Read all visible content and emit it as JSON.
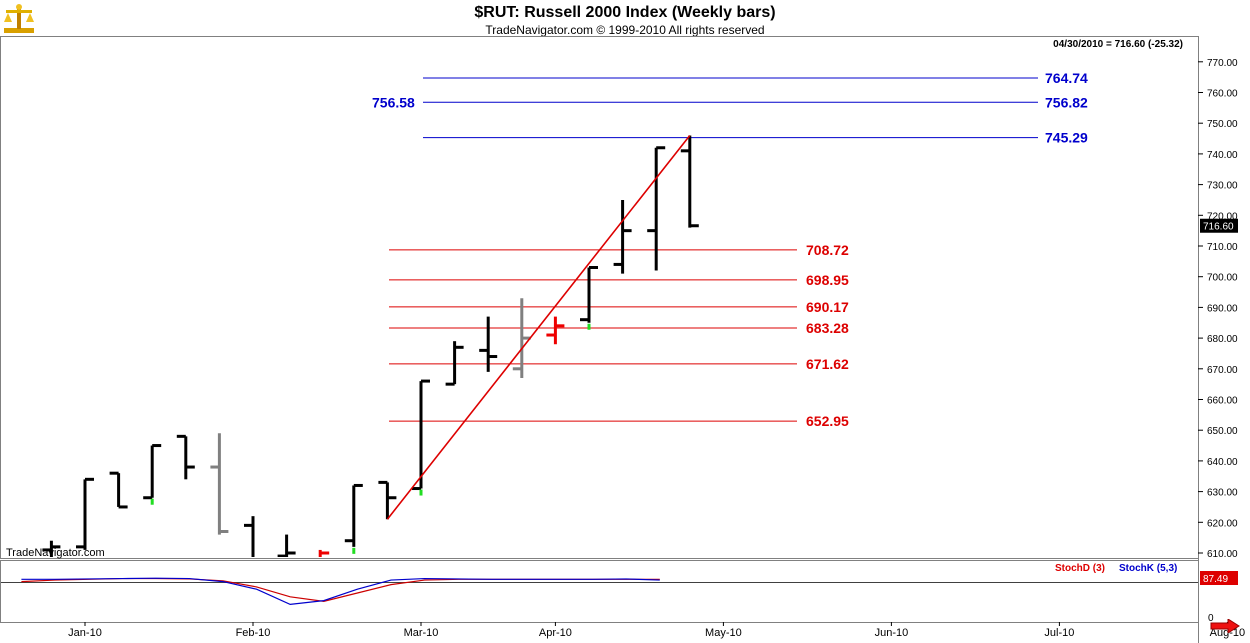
{
  "header": {
    "title": "$RUT:  Russell 2000 Index  (Weekly bars)",
    "subtitle": "TradeNavigator.com © 1999-2010 All rights reserved",
    "last_quote": "04/30/2010 = 716.60 (-25.32)",
    "watermark": "TradeNavigator.com",
    "price_box": "716.60",
    "logo_icon": "scale-balance-icon"
  },
  "colors": {
    "up_bar": "#000000",
    "down_bar": "#808080",
    "red_bar": "#ee0000",
    "green_tick": "#22dd22",
    "trend": "#dd0000",
    "fib_red": "#dd0000",
    "fib_blue": "#0000cc"
  },
  "chart_data": {
    "type": "ohlc",
    "ylim": [
      605,
      772
    ],
    "y_ticks": [
      610,
      620,
      630,
      640,
      650,
      660,
      670,
      680,
      690,
      700,
      710,
      720,
      730,
      740,
      750,
      760,
      770
    ],
    "x_labels": [
      "Jan-10",
      "Feb-10",
      "Mar-10",
      "Apr-10",
      "May-10",
      "Jun-10",
      "Jul-10",
      "Aug-10"
    ],
    "x_label_positions": [
      0,
      5,
      10,
      14,
      19,
      24,
      29,
      34
    ],
    "bars": [
      {
        "i": -1,
        "o": 611,
        "h": 614,
        "l": 605,
        "c": 612,
        "col": "up"
      },
      {
        "i": 0,
        "o": 612,
        "h": 634,
        "l": 611,
        "c": 634,
        "col": "up"
      },
      {
        "i": 1,
        "o": 636,
        "h": 636,
        "l": 625,
        "c": 625,
        "col": "up"
      },
      {
        "i": 2,
        "o": 628,
        "h": 645,
        "l": 628,
        "c": 645,
        "col": "up",
        "tick": "green"
      },
      {
        "i": 3,
        "o": 648,
        "h": 648,
        "l": 634,
        "c": 638,
        "col": "up"
      },
      {
        "i": 4,
        "o": 638,
        "h": 649,
        "l": 616,
        "c": 617,
        "col": "down"
      },
      {
        "i": 5,
        "o": 619,
        "h": 622,
        "l": 605,
        "c": 606,
        "col": "up"
      },
      {
        "i": 6,
        "o": 609,
        "h": 616,
        "l": 605,
        "c": 610,
        "col": "up"
      },
      {
        "i": 7,
        "o": 606,
        "h": 611,
        "l": 605,
        "c": 610,
        "col": "red"
      },
      {
        "i": 8,
        "o": 614,
        "h": 632,
        "l": 612,
        "c": 632,
        "col": "up",
        "tick": "green"
      },
      {
        "i": 9,
        "o": 633,
        "h": 633,
        "l": 621,
        "c": 628,
        "col": "up"
      },
      {
        "i": 10,
        "o": 631,
        "h": 666,
        "l": 631,
        "c": 666,
        "col": "up",
        "tick": "green"
      },
      {
        "i": 11,
        "o": 665,
        "h": 679,
        "l": 665,
        "c": 677,
        "col": "up"
      },
      {
        "i": 12,
        "o": 676,
        "h": 687,
        "l": 669,
        "c": 674,
        "col": "up"
      },
      {
        "i": 13,
        "o": 670,
        "h": 693,
        "l": 667,
        "c": 680,
        "col": "down"
      },
      {
        "i": 14,
        "o": 681,
        "h": 687,
        "l": 678,
        "c": 684,
        "col": "red"
      },
      {
        "i": 15,
        "o": 686,
        "h": 703,
        "l": 685,
        "c": 703,
        "col": "up",
        "tick": "green"
      },
      {
        "i": 16,
        "o": 704,
        "h": 725,
        "l": 701,
        "c": 715,
        "col": "up"
      },
      {
        "i": 17,
        "o": 715,
        "h": 742,
        "l": 702,
        "c": 742,
        "col": "up"
      },
      {
        "i": 18,
        "o": 741,
        "h": 746,
        "l": 716,
        "c": 716.6,
        "col": "up"
      }
    ],
    "trendline": {
      "from": {
        "i": 9,
        "v": 621
      },
      "to": {
        "i": 18,
        "v": 746
      }
    },
    "fib_levels_red": [
      "708.72",
      "698.95",
      "690.17",
      "683.28",
      "671.62",
      "652.95"
    ],
    "fib_levels_red_values": [
      708.72,
      698.95,
      690.17,
      683.28,
      671.62,
      652.95
    ],
    "fib_levels_blue": [
      "764.74",
      "756.82",
      "745.29"
    ],
    "fib_levels_blue_values": [
      764.74,
      756.82,
      745.29
    ],
    "left_blue_label": "756.58",
    "stoch": {
      "label_d": "StochD (3)",
      "label_k": "StochK (5,3)",
      "value_box": "87.49",
      "axis_label": "0",
      "k": [
        86,
        86,
        87,
        88,
        89,
        88,
        80,
        60,
        20,
        30,
        60,
        84,
        88,
        87,
        86,
        86,
        86,
        86,
        87,
        84
      ],
      "d": [
        80,
        84,
        86,
        88,
        88,
        87,
        82,
        66,
        40,
        28,
        50,
        72,
        84,
        86,
        86,
        86,
        86,
        86,
        86,
        86
      ]
    }
  }
}
